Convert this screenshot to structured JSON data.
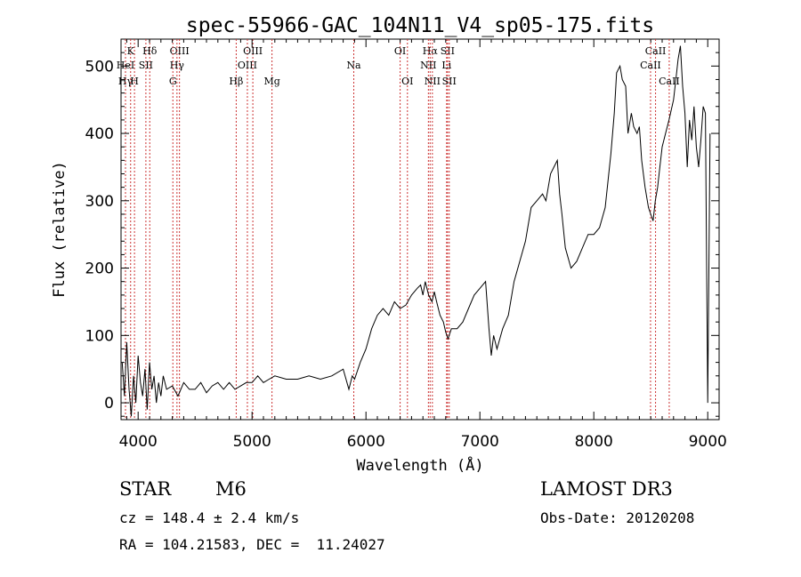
{
  "chart_data": {
    "type": "line",
    "title": "spec-55966-GAC_104N11_V4_sp05-175.fits",
    "xlabel": "Wavelength (Å)",
    "ylabel": "Flux (relative)",
    "xlim": [
      3850,
      9100
    ],
    "ylim": [
      -25,
      540
    ],
    "xticks": [
      4000,
      5000,
      6000,
      7000,
      8000,
      9000
    ],
    "yticks": [
      0,
      100,
      200,
      300,
      400,
      500
    ],
    "grid": false,
    "line_color": "#000000",
    "marker_color": "#cc3333",
    "series": [
      {
        "name": "spectrum",
        "x": [
          3860,
          3880,
          3900,
          3920,
          3940,
          3960,
          3980,
          4000,
          4020,
          4040,
          4060,
          4080,
          4100,
          4120,
          4140,
          4160,
          4180,
          4200,
          4220,
          4250,
          4300,
          4350,
          4400,
          4450,
          4500,
          4550,
          4600,
          4650,
          4700,
          4750,
          4800,
          4850,
          4900,
          4950,
          5000,
          5050,
          5100,
          5150,
          5200,
          5300,
          5400,
          5500,
          5600,
          5700,
          5800,
          5850,
          5880,
          5900,
          5950,
          6000,
          6050,
          6100,
          6150,
          6200,
          6250,
          6300,
          6350,
          6400,
          6450,
          6480,
          6500,
          6520,
          6550,
          6580,
          6600,
          6620,
          6650,
          6680,
          6700,
          6720,
          6750,
          6800,
          6850,
          6900,
          6950,
          7000,
          7050,
          7080,
          7100,
          7120,
          7150,
          7200,
          7250,
          7300,
          7400,
          7450,
          7500,
          7550,
          7580,
          7600,
          7620,
          7650,
          7680,
          7700,
          7720,
          7750,
          7800,
          7850,
          7900,
          7950,
          8000,
          8050,
          8100,
          8150,
          8180,
          8200,
          8230,
          8250,
          8280,
          8300,
          8330,
          8350,
          8380,
          8400,
          8420,
          8450,
          8480,
          8500,
          8520,
          8540,
          8560,
          8580,
          8600,
          8630,
          8660,
          8700,
          8720,
          8740,
          8760,
          8780,
          8800,
          8820,
          8840,
          8860,
          8880,
          8900,
          8920,
          8940,
          8960,
          8980,
          9000,
          9020
        ],
        "values": [
          60,
          10,
          90,
          20,
          -20,
          40,
          0,
          70,
          30,
          10,
          50,
          -10,
          60,
          20,
          40,
          0,
          30,
          10,
          40,
          20,
          25,
          10,
          30,
          20,
          20,
          30,
          15,
          25,
          30,
          20,
          30,
          20,
          25,
          30,
          30,
          40,
          30,
          35,
          40,
          35,
          35,
          40,
          35,
          40,
          50,
          20,
          40,
          35,
          60,
          80,
          110,
          130,
          140,
          130,
          150,
          140,
          145,
          160,
          170,
          175,
          160,
          180,
          160,
          150,
          165,
          150,
          130,
          120,
          105,
          95,
          110,
          110,
          120,
          140,
          160,
          170,
          180,
          110,
          70,
          100,
          80,
          110,
          130,
          180,
          240,
          290,
          300,
          310,
          300,
          320,
          340,
          350,
          360,
          310,
          280,
          230,
          200,
          210,
          230,
          250,
          250,
          260,
          290,
          370,
          430,
          490,
          500,
          480,
          470,
          400,
          430,
          410,
          400,
          410,
          360,
          320,
          290,
          280,
          270,
          300,
          320,
          350,
          380,
          400,
          420,
          450,
          480,
          510,
          530,
          470,
          430,
          350,
          420,
          390,
          440,
          380,
          350,
          390,
          440,
          430,
          0,
          400
        ]
      }
    ],
    "line_markers": [
      {
        "label": "Hγ",
        "wavelength": 3889,
        "row": 3
      },
      {
        "label": "HeI",
        "wavelength": 3889,
        "row": 2
      },
      {
        "label": "K",
        "wavelength": 3934,
        "row": 1
      },
      {
        "label": "H",
        "wavelength": 3968,
        "row": 3
      },
      {
        "label": "SII",
        "wavelength": 4068,
        "row": 2
      },
      {
        "label": "Hδ",
        "wavelength": 4102,
        "row": 1
      },
      {
        "label": "OIII",
        "wavelength": 4363,
        "row": 1
      },
      {
        "label": "Hγ",
        "wavelength": 4341,
        "row": 2
      },
      {
        "label": "G",
        "wavelength": 4305,
        "row": 3
      },
      {
        "label": "Hβ",
        "wavelength": 4861,
        "row": 3
      },
      {
        "label": "OIII",
        "wavelength": 4959,
        "row": 2
      },
      {
        "label": "OIII",
        "wavelength": 5007,
        "row": 1
      },
      {
        "label": "Mg",
        "wavelength": 5175,
        "row": 3
      },
      {
        "label": "Na",
        "wavelength": 5893,
        "row": 2
      },
      {
        "label": "OI",
        "wavelength": 6300,
        "row": 1
      },
      {
        "label": "OI",
        "wavelength": 6364,
        "row": 3
      },
      {
        "label": "Hα",
        "wavelength": 6563,
        "row": 1
      },
      {
        "label": "NII",
        "wavelength": 6548,
        "row": 2
      },
      {
        "label": "NII",
        "wavelength": 6583,
        "row": 3
      },
      {
        "label": "SII",
        "wavelength": 6716,
        "row": 1
      },
      {
        "label": "Li",
        "wavelength": 6708,
        "row": 2
      },
      {
        "label": "SII",
        "wavelength": 6731,
        "row": 3
      },
      {
        "label": "CaII",
        "wavelength": 8542,
        "row": 1
      },
      {
        "label": "CaII",
        "wavelength": 8498,
        "row": 2
      },
      {
        "label": "CaII",
        "wavelength": 8662,
        "row": 3
      }
    ]
  },
  "info": {
    "object_class": "STAR",
    "subclass": "M6",
    "survey": "LAMOST DR3",
    "velocity": "cz = 148.4 ± 2.4 km/s",
    "obs_date": "Obs-Date: 20120208",
    "coords": "RA = 104.21583, DEC =  11.24027"
  }
}
